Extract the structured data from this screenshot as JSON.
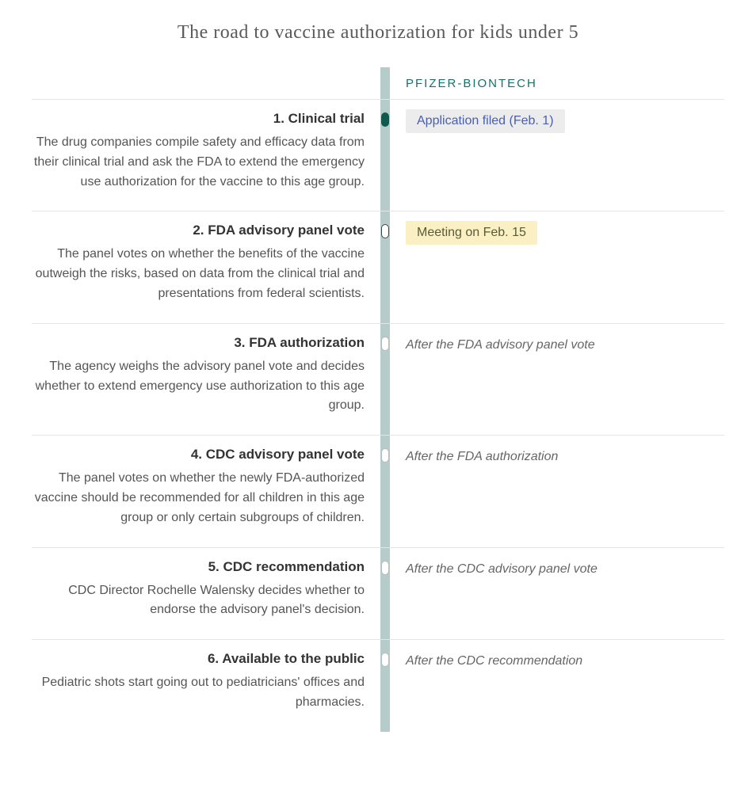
{
  "title": "The road to vaccine authorization for kids under 5",
  "column_label": "PFIZER-BIONTECH",
  "colors": {
    "track": "#b6cccb",
    "header_text": "#1b6e6b",
    "title_text": "#5a5a5a",
    "divider": "#e5e5e5",
    "step_title": "#333333",
    "step_desc": "#555555",
    "marker_filled": "#0e5a4f",
    "status_filed_bg": "#ececec",
    "status_filed_text": "#4a5fad",
    "status_meeting_bg": "#faf0c3",
    "status_meeting_text": "#5a5a3a",
    "status_pending_text": "#666666"
  },
  "steps": [
    {
      "num": "1.",
      "title": "Clinical trial",
      "desc": "The drug companies compile safety and efficacy data from their clinical trial and ask the FDA to extend the emergency use authorization for the vaccine to this age group.",
      "marker": "filled",
      "status_text": "Application filed (Feb. 1)",
      "status_style": "filed"
    },
    {
      "num": "2.",
      "title": "FDA advisory panel vote",
      "desc": "The panel votes on whether the benefits of the vaccine outweigh the risks, based on data from the clinical trial and presentations from federal scientists.",
      "marker": "hollow",
      "status_text": "Meeting on Feb. 15",
      "status_style": "meeting"
    },
    {
      "num": "3.",
      "title": "FDA authorization",
      "desc": "The agency weighs the advisory panel vote and decides whether to extend emergency use authorization to this age group.",
      "marker": "hollow-light",
      "status_text": "After the FDA advisory panel vote",
      "status_style": "pending"
    },
    {
      "num": "4.",
      "title": "CDC advisory panel vote",
      "desc": "The panel votes on whether the newly FDA-authorized vaccine should be recommended for all children in this age group or only certain subgroups of children.",
      "marker": "hollow-light",
      "status_text": "After the FDA authorization",
      "status_style": "pending"
    },
    {
      "num": "5.",
      "title": "CDC recommendation",
      "desc": "CDC Director Rochelle Walensky decides whether to endorse the advisory panel's decision.",
      "marker": "hollow-light",
      "status_text": "After the CDC advisory panel vote",
      "status_style": "pending"
    },
    {
      "num": "6.",
      "title": "Available to the public",
      "desc": "Pediatric shots start going out to pediatricians' offices and pharmacies.",
      "marker": "hollow-light",
      "status_text": "After the CDC recommendation",
      "status_style": "pending"
    }
  ]
}
